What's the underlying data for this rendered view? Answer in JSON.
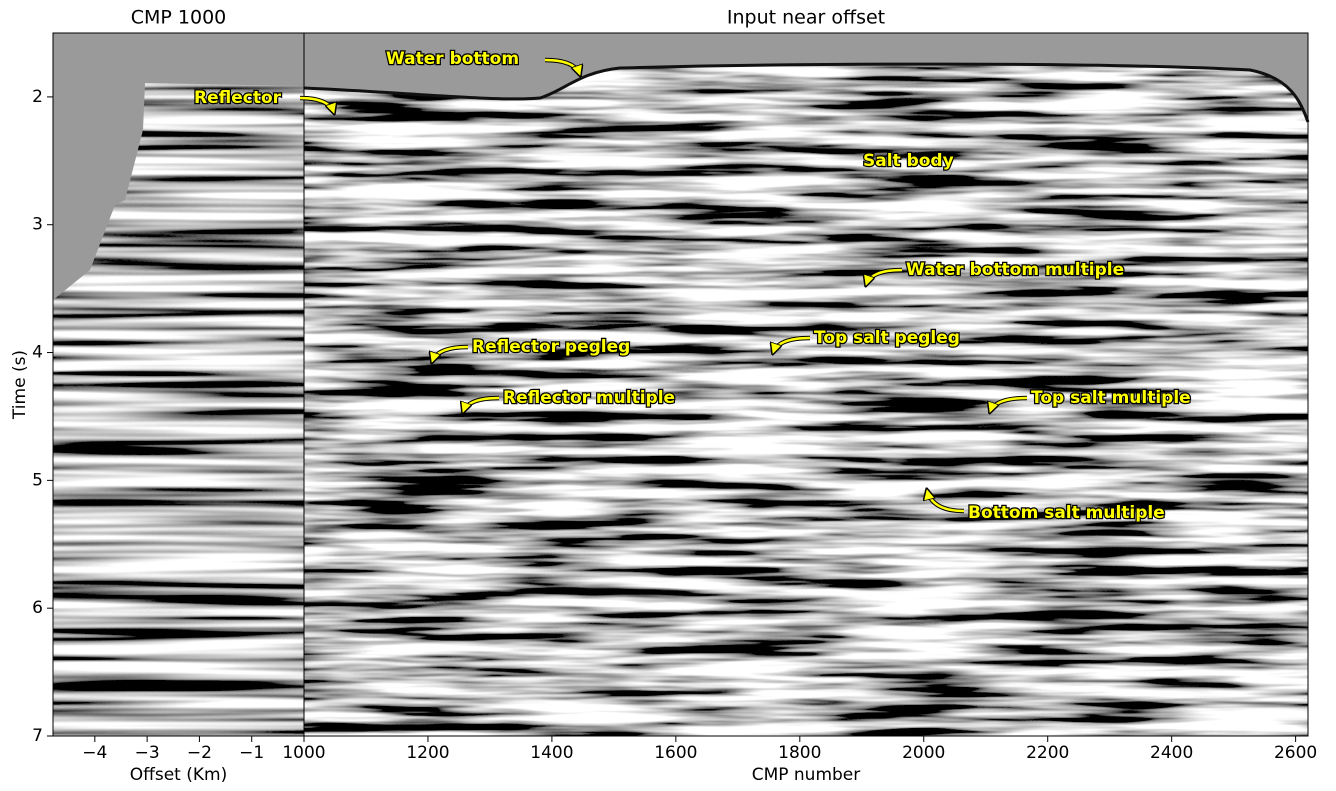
{
  "chart_data": [
    {
      "type": "image",
      "title": "CMP 1000",
      "x_label": "Offset (Km)",
      "y_label": "Time (s)",
      "xlim": [
        -4.8,
        0
      ],
      "xticks": [
        {
          "value": -4,
          "label": "−4"
        },
        {
          "value": -3,
          "label": "−3"
        },
        {
          "value": -2,
          "label": "−2"
        },
        {
          "value": -1,
          "label": "−1"
        }
      ],
      "ylim": [
        7,
        1.5
      ],
      "yticks": [
        2,
        3,
        4,
        5,
        6,
        7
      ]
    },
    {
      "type": "image",
      "title": "Input near offset",
      "x_label": "CMP number",
      "xlim": [
        1000,
        2620
      ],
      "xticks": [
        1000,
        1200,
        1400,
        1600,
        1800,
        2000,
        2200,
        2400,
        2600
      ],
      "ylim": [
        7,
        1.5
      ],
      "annotations": [
        "Water bottom",
        "Reflector",
        "Salt body",
        "Water bottom multiple",
        "Reflector pegleg",
        "Top salt pegleg",
        "Reflector multiple",
        "Top salt multiple",
        "Bottom salt multiple"
      ]
    }
  ]
}
